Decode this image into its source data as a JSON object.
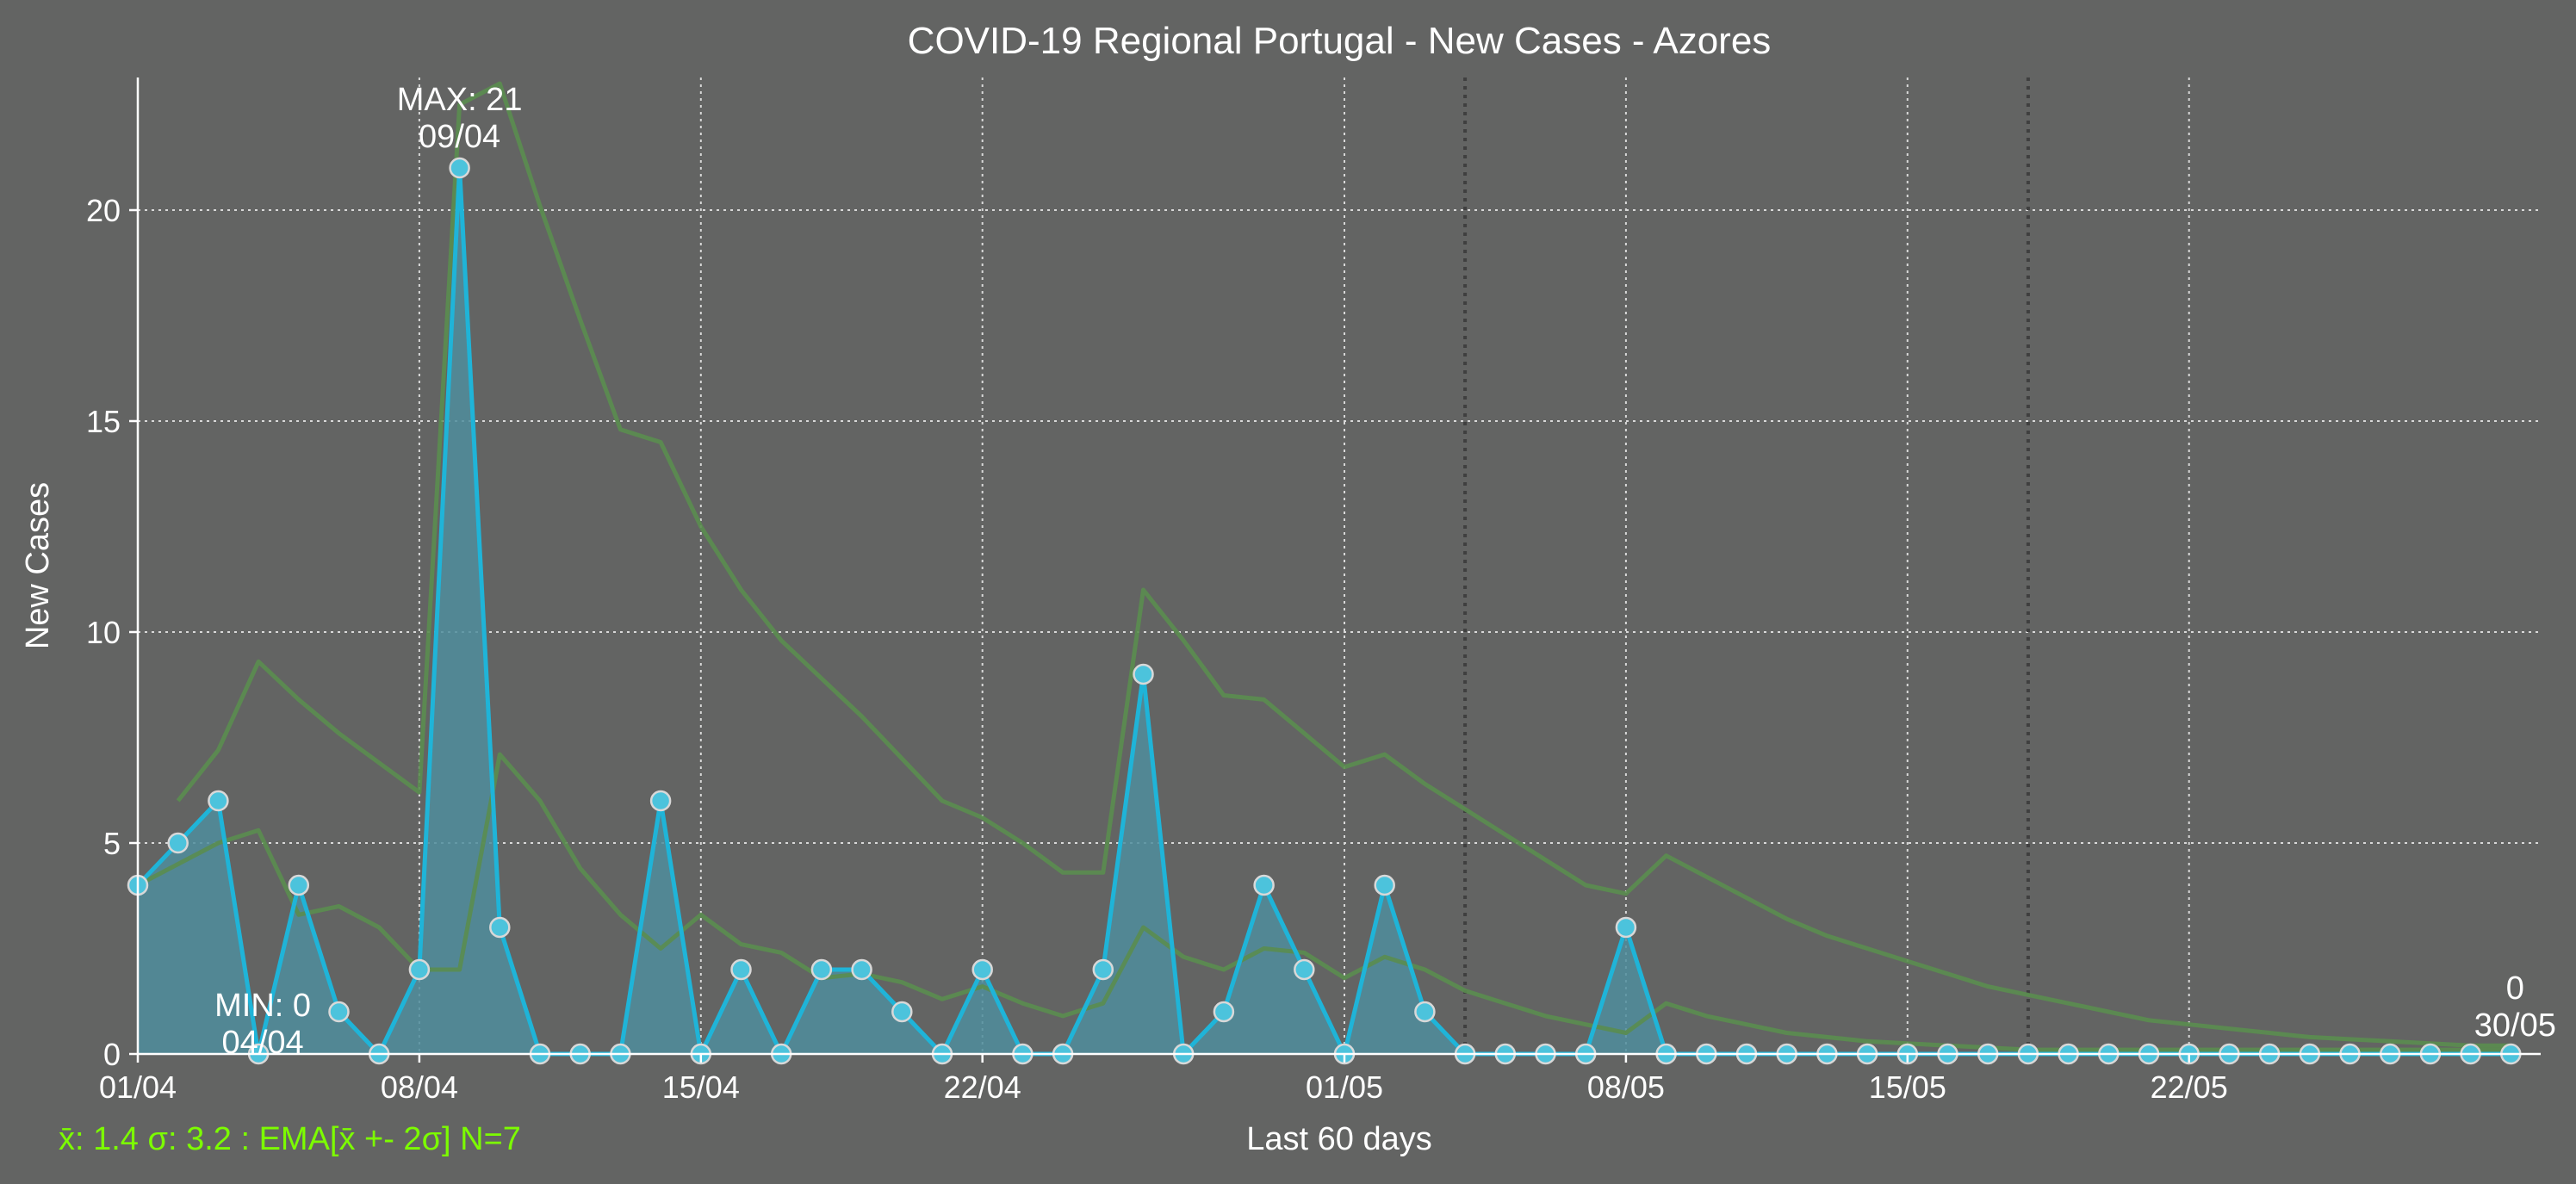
{
  "chart_data": {
    "type": "line",
    "title": "COVID-19 Regional Portugal - New Cases - Azores",
    "xlabel": "Last 60 days",
    "ylabel": "New Cases",
    "footer_stats": "x̄: 1.4 σ: 3.2 : EMA[x̄ +- 2σ] N=7",
    "ylim": [
      0,
      23.2
    ],
    "yticks": [
      0,
      5,
      10,
      15,
      20
    ],
    "start_date": "01/04",
    "end_date": "30/05",
    "x_tick_labels": [
      "01/04",
      "08/04",
      "15/04",
      "22/04",
      "01/05",
      "08/05",
      "15/05",
      "22/05"
    ],
    "x_tick_positions": [
      0,
      7,
      14,
      21,
      30,
      37,
      44,
      51
    ],
    "dotted_vertical_lines": [
      33,
      47
    ],
    "grid": true,
    "colors": {
      "background": "#636463",
      "line": "#1fb4d8",
      "fill": "#4f8d9c",
      "marker_face": "#4cc3dc",
      "marker_edge": "#d8d8d8",
      "ema": "#5a8d4f",
      "grid": "#d9d9d9",
      "stats_text": "#7cfc00"
    },
    "series": [
      {
        "values": [
          4,
          5,
          6,
          0,
          4,
          1,
          0,
          2,
          21,
          3,
          0,
          0,
          0,
          6,
          0,
          2,
          0,
          2,
          2,
          1,
          0,
          2,
          0,
          0,
          2,
          9,
          0,
          1,
          4,
          2,
          0,
          4,
          1,
          0,
          0,
          0,
          0,
          3,
          0,
          0,
          0,
          0,
          0,
          0,
          0,
          0,
          0,
          0,
          0,
          0,
          0,
          0,
          0,
          0,
          0,
          0,
          0,
          0,
          0,
          0
        ]
      }
    ],
    "ema_upper": [
      null,
      6.0,
      7.2,
      9.3,
      8.4,
      7.6,
      6.9,
      6.2,
      22.5,
      23.0,
      20.1,
      17.4,
      14.8,
      14.5,
      12.5,
      11.0,
      9.8,
      8.9,
      8.0,
      7.0,
      6.0,
      5.6,
      5.0,
      4.3,
      4.3,
      11.0,
      9.8,
      8.5,
      8.4,
      7.6,
      6.8,
      7.1,
      6.4,
      5.8,
      5.2,
      4.6,
      4.0,
      3.8,
      4.7,
      4.2,
      3.7,
      3.2,
      2.8,
      2.5,
      2.2,
      1.9,
      1.6,
      1.4,
      1.2,
      1.0,
      0.8,
      0.7,
      0.6,
      0.5,
      0.4,
      0.35,
      0.3,
      0.25,
      0.2,
      0.2
    ],
    "ema_mid": [
      4.0,
      4.5,
      5.0,
      5.3,
      3.3,
      3.5,
      3.0,
      2.0,
      2.0,
      7.1,
      6.0,
      4.4,
      3.3,
      2.5,
      3.3,
      2.6,
      2.4,
      1.8,
      1.9,
      1.7,
      1.3,
      1.6,
      1.2,
      0.9,
      1.2,
      3.0,
      2.3,
      2.0,
      2.5,
      2.4,
      1.8,
      2.3,
      2.0,
      1.5,
      1.2,
      0.9,
      0.7,
      0.5,
      1.2,
      0.9,
      0.7,
      0.5,
      0.4,
      0.3,
      0.25,
      0.2,
      0.15,
      0.1,
      0.1,
      0.1,
      0.1,
      0.1,
      0.1,
      0.1,
      0.1,
      0.1,
      0.1,
      0.1,
      0.1,
      0.1
    ],
    "ema_lower": [
      null,
      3.2,
      3.2,
      0.5,
      0.0,
      0.0,
      0.0,
      0.0,
      0.0,
      0.0,
      0.0,
      0.0,
      0.0,
      0.0,
      0.0,
      0.0,
      0.0,
      0.0,
      0.0,
      0.0,
      0.0,
      0.0,
      0.0,
      0.0,
      0.0,
      0.0,
      0.0,
      0.0,
      0.0,
      0.0,
      0.0,
      0.0,
      0.0,
      0.0,
      0.0,
      0.0,
      0.0,
      0.0,
      0.0,
      0.0,
      0.0,
      0.0,
      0.0,
      0.0,
      0.0,
      0.0,
      0.0,
      0.0,
      0.0,
      0.0,
      0.0,
      0.0,
      0.0,
      0.0,
      0.0,
      0.0,
      0.0,
      0.0,
      0.0,
      0.0
    ],
    "annotations": [
      {
        "name": "max",
        "label": "MAX: 21",
        "date": "09/04",
        "index": 8,
        "value": 21
      },
      {
        "name": "min",
        "label": "MIN: 0",
        "date": "04/04",
        "index": 3,
        "value": 0
      },
      {
        "name": "last",
        "label": "0",
        "date": "30/05",
        "index": 59,
        "value": 0
      }
    ]
  }
}
